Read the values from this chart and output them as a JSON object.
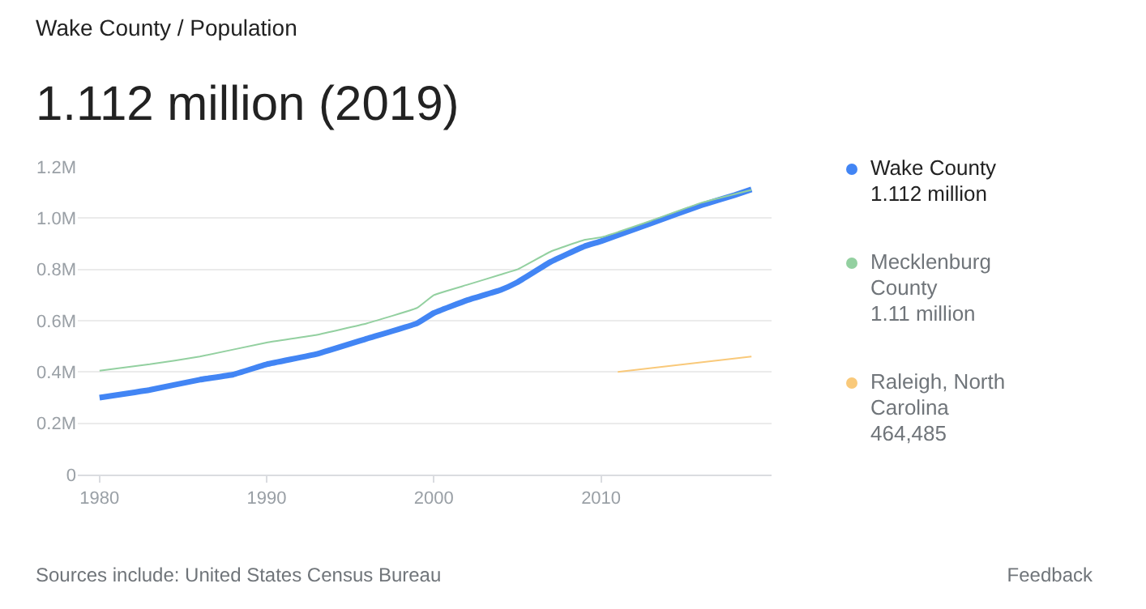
{
  "chart_data": {
    "type": "line",
    "subtitle": "Wake County / Population",
    "title": "1.112 million (2019)",
    "series": [
      {
        "name": "Wake County",
        "color": "#4285f4",
        "x": [
          1980,
          1983,
          1986,
          1988,
          1990,
          1993,
          1996,
          1999,
          2000,
          2002,
          2004,
          2005,
          2007,
          2009,
          2010,
          2013,
          2016,
          2018,
          2019
        ],
        "values": [
          0.3,
          0.33,
          0.37,
          0.39,
          0.43,
          0.47,
          0.53,
          0.59,
          0.63,
          0.68,
          0.72,
          0.75,
          0.83,
          0.89,
          0.91,
          0.98,
          1.05,
          1.09,
          1.112
        ]
      },
      {
        "name": "Mecklenburg County",
        "color": "#93d0a0",
        "x": [
          1980,
          1983,
          1986,
          1990,
          1993,
          1996,
          1999,
          2000,
          2002,
          2004,
          2005,
          2007,
          2009,
          2010,
          2013,
          2016,
          2019
        ],
        "values": [
          0.405,
          0.43,
          0.46,
          0.515,
          0.545,
          0.59,
          0.65,
          0.7,
          0.74,
          0.78,
          0.8,
          0.87,
          0.915,
          0.925,
          0.99,
          1.06,
          1.11
        ]
      },
      {
        "name": "Raleigh, North Carolina",
        "color": "#f9c97a",
        "x": [
          2011,
          2019
        ],
        "values": [
          0.4,
          0.46
        ]
      }
    ],
    "annotations": [
      "1.112 million",
      "1.11 million",
      "464,485",
      "Sources include: United States Census Bureau",
      "Feedback"
    ],
    "xlim": [
      1978.7,
      2020.2
    ],
    "xticks": [
      1980,
      1990,
      2000,
      2010
    ],
    "ylim": [
      0,
      1.2
    ],
    "yticks": [
      0,
      {
        "value": 0.2,
        "label": "0.2M"
      },
      {
        "value": 0.4,
        "label": "0.4M"
      },
      {
        "value": 0.6,
        "label": "0.6M"
      },
      {
        "value": 0.8,
        "label": "0.8M"
      },
      {
        "value": 1.0,
        "label": "1.0M"
      },
      {
        "value": 1.2,
        "label": "1.2M"
      }
    ],
    "grid": "y",
    "legend": "right"
  }
}
